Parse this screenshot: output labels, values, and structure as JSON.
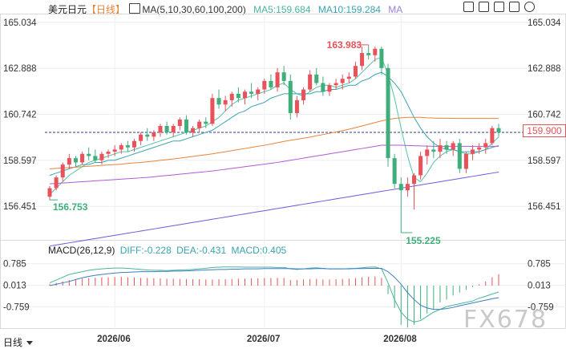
{
  "header": {
    "symbol": "美元日元",
    "timeframe": "【日线】",
    "ma_label": "MA(5,10,30,60,100,200)",
    "ma5": "MA5:159.684",
    "ma10": "MA10:159.284",
    "ma_more": "MA"
  },
  "macd_header": {
    "label": "MACD(26,12,9)",
    "diff": "DIFF:-0.228",
    "dea": "DEA:-0.431",
    "macd": "MACD:0.405"
  },
  "current_price": "159.900",
  "watermark": "FX678",
  "timeframe_button": "日线",
  "icons": [
    "chart-type-icon",
    "fullscreen-icon",
    "minus-icon",
    "plus-icon",
    "settings-icon"
  ],
  "colors": {
    "up": "#e8525a",
    "down": "#3fae7a",
    "ma5": "#55c0a6",
    "ma10": "#3aa3b0",
    "ma30": "#e8843a",
    "ma60": "#b05ad8",
    "ma100": "#6b5ae0",
    "price_line": "#2c3e80"
  },
  "chart_data": {
    "type": "candlestick",
    "y_ticks": [
      "165.034",
      "162.888",
      "160.742",
      "158.597",
      "156.451"
    ],
    "ylim": [
      155.0,
      165.4
    ],
    "x_ticks": [
      "2026/06",
      "2026/07",
      "2026/08"
    ],
    "annotations": {
      "high": "163.983",
      "low": "155.225",
      "left_low": "156.753"
    },
    "candles": [
      [
        156.9,
        157.4,
        156.75,
        157.3
      ],
      [
        157.3,
        157.9,
        157.2,
        157.8
      ],
      [
        157.8,
        158.5,
        157.6,
        158.4
      ],
      [
        158.4,
        158.9,
        158.2,
        158.7
      ],
      [
        158.7,
        158.8,
        158.3,
        158.5
      ],
      [
        158.5,
        159.0,
        158.4,
        158.9
      ],
      [
        158.9,
        159.2,
        158.6,
        158.8
      ],
      [
        158.8,
        159.1,
        158.5,
        158.6
      ],
      [
        158.6,
        159.0,
        158.4,
        158.9
      ],
      [
        158.9,
        159.1,
        158.7,
        159.0
      ],
      [
        159.0,
        159.3,
        158.8,
        159.1
      ],
      [
        159.1,
        159.4,
        158.9,
        159.3
      ],
      [
        159.3,
        159.5,
        159.0,
        159.2
      ],
      [
        159.2,
        159.6,
        159.0,
        159.5
      ],
      [
        159.5,
        159.9,
        159.3,
        159.8
      ],
      [
        159.8,
        160.1,
        159.5,
        159.7
      ],
      [
        159.7,
        160.0,
        159.5,
        159.9
      ],
      [
        159.9,
        160.3,
        159.7,
        160.2
      ],
      [
        160.2,
        160.4,
        159.8,
        159.9
      ],
      [
        159.9,
        160.3,
        159.7,
        160.2
      ],
      [
        160.2,
        160.6,
        160.0,
        160.5
      ],
      [
        160.5,
        160.7,
        159.8,
        159.9
      ],
      [
        159.9,
        160.2,
        159.7,
        160.1
      ],
      [
        160.1,
        160.5,
        159.9,
        160.4
      ],
      [
        160.4,
        160.6,
        160.1,
        160.3
      ],
      [
        160.3,
        161.7,
        160.2,
        161.5
      ],
      [
        161.5,
        161.9,
        161.0,
        161.2
      ],
      [
        161.2,
        161.6,
        160.9,
        161.4
      ],
      [
        161.4,
        161.8,
        161.1,
        161.7
      ],
      [
        161.7,
        162.0,
        161.3,
        161.5
      ],
      [
        161.5,
        161.9,
        161.2,
        161.8
      ],
      [
        161.8,
        162.2,
        161.5,
        161.7
      ],
      [
        161.7,
        162.0,
        161.4,
        161.9
      ],
      [
        161.9,
        162.4,
        161.7,
        162.3
      ],
      [
        162.3,
        162.6,
        161.9,
        162.0
      ],
      [
        162.0,
        162.9,
        161.8,
        162.7
      ],
      [
        162.7,
        163.0,
        162.1,
        162.3
      ],
      [
        162.3,
        162.6,
        160.5,
        160.8
      ],
      [
        160.8,
        161.6,
        160.6,
        161.4
      ],
      [
        161.4,
        162.0,
        161.2,
        161.9
      ],
      [
        161.9,
        162.8,
        161.8,
        162.6
      ],
      [
        162.6,
        162.9,
        162.1,
        162.2
      ],
      [
        162.2,
        162.5,
        161.6,
        161.8
      ],
      [
        161.8,
        162.2,
        161.6,
        162.1
      ],
      [
        162.1,
        162.4,
        161.9,
        162.2
      ],
      [
        162.2,
        162.6,
        161.9,
        162.4
      ],
      [
        162.4,
        162.7,
        162.2,
        162.5
      ],
      [
        162.5,
        163.2,
        162.4,
        163.0
      ],
      [
        163.0,
        163.9,
        162.8,
        163.6
      ],
      [
        163.6,
        163.983,
        163.3,
        163.5
      ],
      [
        163.5,
        163.9,
        163.2,
        163.8
      ],
      [
        163.8,
        163.9,
        162.6,
        162.9
      ],
      [
        162.9,
        163.1,
        158.3,
        158.7
      ],
      [
        158.7,
        158.9,
        157.3,
        157.5
      ],
      [
        157.5,
        157.8,
        155.225,
        157.2
      ],
      [
        157.2,
        157.8,
        156.9,
        157.5
      ],
      [
        157.5,
        158.0,
        156.3,
        157.9
      ],
      [
        157.9,
        159.0,
        157.7,
        158.8
      ],
      [
        158.8,
        159.3,
        158.4,
        159.1
      ],
      [
        159.1,
        159.5,
        158.7,
        159.0
      ],
      [
        159.0,
        159.6,
        158.7,
        159.3
      ],
      [
        159.3,
        159.5,
        158.9,
        159.1
      ],
      [
        159.1,
        159.5,
        158.8,
        159.4
      ],
      [
        159.4,
        159.6,
        158.0,
        158.2
      ],
      [
        158.2,
        159.0,
        158.0,
        158.9
      ],
      [
        158.9,
        159.3,
        158.6,
        159.1
      ],
      [
        159.1,
        159.4,
        158.9,
        159.2
      ],
      [
        159.2,
        159.6,
        158.9,
        159.4
      ],
      [
        159.4,
        160.2,
        159.3,
        160.1
      ],
      [
        160.1,
        160.3,
        159.7,
        159.9
      ]
    ],
    "macd_ticks": [
      "0.785",
      "0.013",
      "-0.759"
    ],
    "macd_ylim": [
      -1.55,
      1.15
    ],
    "macd_hist": [
      0.05,
      0.1,
      0.15,
      0.2,
      0.22,
      0.25,
      0.27,
      0.28,
      0.3,
      0.3,
      0.31,
      0.32,
      0.3,
      0.3,
      0.28,
      0.28,
      0.27,
      0.26,
      0.25,
      0.25,
      0.24,
      0.24,
      0.23,
      0.23,
      0.22,
      0.22,
      0.23,
      0.23,
      0.24,
      0.25,
      0.25,
      0.26,
      0.26,
      0.27,
      0.27,
      0.28,
      0.28,
      0.2,
      0.2,
      0.22,
      0.24,
      0.24,
      0.22,
      0.22,
      0.23,
      0.24,
      0.25,
      0.27,
      0.3,
      0.32,
      0.33,
      0.28,
      -0.3,
      -0.8,
      -1.4,
      -1.5,
      -1.4,
      -1.2,
      -1.0,
      -0.85,
      -0.6,
      -0.5,
      -0.35,
      -0.25,
      -0.15,
      -0.05,
      0.05,
      0.15,
      0.3,
      0.405
    ],
    "macd_diff": [
      0.1,
      0.2,
      0.3,
      0.4,
      0.45,
      0.5,
      0.55,
      0.58,
      0.6,
      0.62,
      0.63,
      0.63,
      0.62,
      0.6,
      0.58,
      0.56,
      0.55,
      0.55,
      0.54,
      0.55,
      0.56,
      0.57,
      0.58,
      0.6,
      0.62,
      0.65,
      0.66,
      0.67,
      0.67,
      0.67,
      0.66,
      0.66,
      0.66,
      0.66,
      0.66,
      0.65,
      0.65,
      0.6,
      0.58,
      0.6,
      0.63,
      0.64,
      0.62,
      0.6,
      0.6,
      0.6,
      0.61,
      0.62,
      0.64,
      0.66,
      0.67,
      0.6,
      0.1,
      -0.5,
      -0.95,
      -1.2,
      -1.3,
      -1.25,
      -1.1,
      -0.95,
      -0.85,
      -0.75,
      -0.7,
      -0.65,
      -0.6,
      -0.55,
      -0.45,
      -0.38,
      -0.3,
      -0.228
    ],
    "macd_dea": [
      0.0,
      0.05,
      0.1,
      0.15,
      0.22,
      0.28,
      0.33,
      0.37,
      0.4,
      0.43,
      0.45,
      0.47,
      0.48,
      0.49,
      0.5,
      0.5,
      0.5,
      0.51,
      0.51,
      0.52,
      0.52,
      0.53,
      0.54,
      0.55,
      0.56,
      0.57,
      0.58,
      0.58,
      0.59,
      0.59,
      0.6,
      0.6,
      0.6,
      0.61,
      0.61,
      0.61,
      0.61,
      0.61,
      0.6,
      0.6,
      0.6,
      0.61,
      0.61,
      0.6,
      0.6,
      0.6,
      0.6,
      0.61,
      0.61,
      0.62,
      0.62,
      0.62,
      0.5,
      0.3,
      0.05,
      -0.25,
      -0.5,
      -0.7,
      -0.8,
      -0.85,
      -0.85,
      -0.82,
      -0.78,
      -0.72,
      -0.67,
      -0.62,
      -0.57,
      -0.52,
      -0.47,
      -0.431
    ],
    "ma_lines": {
      "ma5": [
        157.0,
        157.3,
        157.6,
        157.9,
        158.1,
        158.3,
        158.5,
        158.6,
        158.7,
        158.8,
        158.9,
        159.0,
        159.0,
        159.1,
        159.2,
        159.3,
        159.4,
        159.5,
        159.6,
        159.7,
        159.8,
        159.9,
        160.0,
        160.1,
        160.2,
        160.4,
        160.6,
        160.9,
        161.2,
        161.4,
        161.5,
        161.6,
        161.7,
        161.8,
        161.9,
        162.1,
        162.2,
        161.9,
        161.7,
        161.6,
        161.8,
        162.0,
        162.1,
        162.1,
        162.0,
        162.1,
        162.2,
        162.4,
        162.7,
        163.0,
        163.3,
        163.4,
        162.6,
        161.5,
        160.1,
        158.8,
        157.8,
        157.6,
        158.0,
        158.5,
        158.8,
        159.0,
        159.1,
        159.0,
        158.9,
        158.9,
        159.0,
        159.1,
        159.4,
        159.684
      ],
      "ma10": [
        157.9,
        158.0,
        158.1,
        158.2,
        158.3,
        158.4,
        158.4,
        158.5,
        158.5,
        158.6,
        158.6,
        158.7,
        158.8,
        158.9,
        159.0,
        159.1,
        159.2,
        159.3,
        159.4,
        159.5,
        159.5,
        159.6,
        159.7,
        159.8,
        159.9,
        160.0,
        160.2,
        160.4,
        160.6,
        160.8,
        160.9,
        161.1,
        161.2,
        161.3,
        161.5,
        161.6,
        161.7,
        161.7,
        161.7,
        161.7,
        161.7,
        161.8,
        161.8,
        161.9,
        161.9,
        162.0,
        162.1,
        162.1,
        162.3,
        162.4,
        162.6,
        162.7,
        162.5,
        162.2,
        161.8,
        161.2,
        160.6,
        160.1,
        159.7,
        159.4,
        159.2,
        159.1,
        159.1,
        159.0,
        159.0,
        159.0,
        159.0,
        159.1,
        159.2,
        159.284
      ],
      "ma30": [
        158.2,
        158.22,
        158.24,
        158.26,
        158.28,
        158.3,
        158.32,
        158.34,
        158.36,
        158.38,
        158.4,
        158.42,
        158.45,
        158.48,
        158.5,
        158.53,
        158.56,
        158.6,
        158.63,
        158.66,
        158.7,
        158.74,
        158.78,
        158.82,
        158.86,
        158.9,
        158.95,
        159.0,
        159.05,
        159.1,
        159.15,
        159.2,
        159.25,
        159.3,
        159.36,
        159.42,
        159.48,
        159.53,
        159.58,
        159.63,
        159.68,
        159.74,
        159.8,
        159.86,
        159.92,
        159.98,
        160.05,
        160.12,
        160.2,
        160.28,
        160.36,
        160.44,
        160.5,
        160.55,
        160.58,
        160.6,
        160.6,
        160.6,
        160.58,
        160.57,
        160.56,
        160.56,
        160.55,
        160.55,
        160.55,
        160.55,
        160.55,
        160.55,
        160.55,
        160.55
      ],
      "ma60": [
        157.5,
        157.52,
        157.54,
        157.56,
        157.58,
        157.6,
        157.62,
        157.64,
        157.66,
        157.68,
        157.7,
        157.72,
        157.74,
        157.76,
        157.78,
        157.8,
        157.83,
        157.86,
        157.89,
        157.92,
        157.95,
        157.98,
        158.01,
        158.04,
        158.07,
        158.1,
        158.14,
        158.18,
        158.22,
        158.26,
        158.3,
        158.34,
        158.38,
        158.42,
        158.46,
        158.5,
        158.55,
        158.6,
        158.65,
        158.7,
        158.75,
        158.8,
        158.85,
        158.9,
        158.95,
        159.0,
        159.05,
        159.1,
        159.15,
        159.2,
        159.25,
        159.3,
        159.3,
        159.3,
        159.3,
        159.29,
        159.28,
        159.27,
        159.26,
        159.25,
        159.25,
        159.25,
        159.25,
        159.25,
        159.25,
        159.25,
        159.25,
        159.25,
        159.25,
        159.25
      ],
      "ma100": [
        154.6,
        154.65,
        154.7,
        154.75,
        154.8,
        154.85,
        154.9,
        154.95,
        155.0,
        155.05,
        155.1,
        155.15,
        155.2,
        155.25,
        155.3,
        155.35,
        155.4,
        155.45,
        155.5,
        155.55,
        155.6,
        155.65,
        155.7,
        155.75,
        155.8,
        155.85,
        155.9,
        155.95,
        156.0,
        156.05,
        156.1,
        156.15,
        156.2,
        156.25,
        156.3,
        156.35,
        156.4,
        156.45,
        156.5,
        156.55,
        156.6,
        156.65,
        156.7,
        156.75,
        156.8,
        156.85,
        156.9,
        156.95,
        157.0,
        157.05,
        157.1,
        157.15,
        157.2,
        157.25,
        157.3,
        157.35,
        157.4,
        157.45,
        157.5,
        157.55,
        157.6,
        157.65,
        157.7,
        157.75,
        157.8,
        157.85,
        157.9,
        157.95,
        158.0,
        158.05
      ]
    }
  }
}
